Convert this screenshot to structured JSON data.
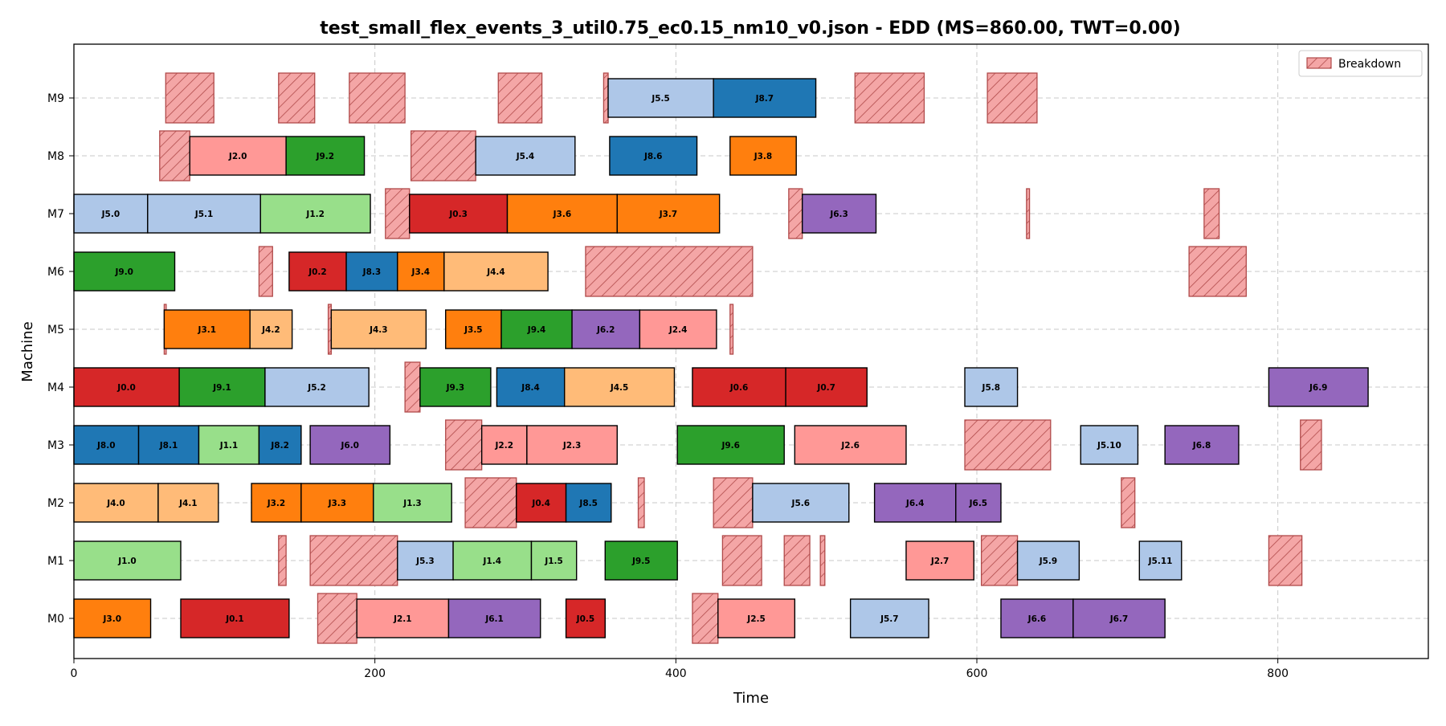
{
  "chart_data": {
    "type": "gantt",
    "title": "test_small_flex_events_3_util0.75_ec0.15_nm10_v0.json - EDD (MS=860.00, TWT=0.00)",
    "xlabel": "Time",
    "ylabel": "Machine",
    "xlim": [
      0,
      900
    ],
    "xticks": [
      0,
      200,
      400,
      600,
      800
    ],
    "machines": [
      "M0",
      "M1",
      "M2",
      "M3",
      "M4",
      "M5",
      "M6",
      "M7",
      "M8",
      "M9"
    ],
    "grid": true,
    "legend": {
      "position": "top-right",
      "entries": [
        "Breakdown"
      ]
    },
    "job_colors": {
      "J0": "#d62728",
      "J1": "#98df8a",
      "J2": "#ff9896",
      "J3": "#ff7f0e",
      "J4": "#ffbb78",
      "J5": "#aec7e8",
      "J6": "#9467bd",
      "J8": "#1f77b4",
      "J9": "#2ca02c"
    },
    "breakdown_color": "#f4a6a6",
    "operations": [
      {
        "machine": "M0",
        "label": "J3.0",
        "job": "J3",
        "start": 0,
        "end": 51
      },
      {
        "machine": "M0",
        "label": "J0.1",
        "job": "J0",
        "start": 71,
        "end": 143
      },
      {
        "machine": "M0",
        "label": "J2.1",
        "job": "J2",
        "start": 188,
        "end": 249
      },
      {
        "machine": "M0",
        "label": "J6.1",
        "job": "J6",
        "start": 249,
        "end": 310
      },
      {
        "machine": "M0",
        "label": "J0.5",
        "job": "J0",
        "start": 327,
        "end": 353
      },
      {
        "machine": "M0",
        "label": "J2.5",
        "job": "J2",
        "start": 428,
        "end": 479
      },
      {
        "machine": "M0",
        "label": "J5.7",
        "job": "J5",
        "start": 516,
        "end": 568
      },
      {
        "machine": "M0",
        "label": "J6.6",
        "job": "J6",
        "start": 616,
        "end": 664
      },
      {
        "machine": "M0",
        "label": "J6.7",
        "job": "J6",
        "start": 664,
        "end": 725
      },
      {
        "machine": "M1",
        "label": "J1.0",
        "job": "J1",
        "start": 0,
        "end": 71
      },
      {
        "machine": "M1",
        "label": "J5.3",
        "job": "J5",
        "start": 215,
        "end": 252
      },
      {
        "machine": "M1",
        "label": "J1.4",
        "job": "J1",
        "start": 252,
        "end": 304
      },
      {
        "machine": "M1",
        "label": "J1.5",
        "job": "J1",
        "start": 304,
        "end": 334
      },
      {
        "machine": "M1",
        "label": "J9.5",
        "job": "J9",
        "start": 353,
        "end": 401
      },
      {
        "machine": "M1",
        "label": "J2.7",
        "job": "J2",
        "start": 553,
        "end": 598
      },
      {
        "machine": "M1",
        "label": "J5.9",
        "job": "J5",
        "start": 627,
        "end": 668
      },
      {
        "machine": "M1",
        "label": "J5.11",
        "job": "J5",
        "start": 708,
        "end": 736
      },
      {
        "machine": "M2",
        "label": "J4.0",
        "job": "J4",
        "start": 0,
        "end": 56
      },
      {
        "machine": "M2",
        "label": "J4.1",
        "job": "J4",
        "start": 56,
        "end": 96
      },
      {
        "machine": "M2",
        "label": "J3.2",
        "job": "J3",
        "start": 118,
        "end": 151
      },
      {
        "machine": "M2",
        "label": "J3.3",
        "job": "J3",
        "start": 151,
        "end": 199
      },
      {
        "machine": "M2",
        "label": "J1.3",
        "job": "J1",
        "start": 199,
        "end": 251
      },
      {
        "machine": "M2",
        "label": "J0.4",
        "job": "J0",
        "start": 294,
        "end": 327
      },
      {
        "machine": "M2",
        "label": "J8.5",
        "job": "J8",
        "start": 327,
        "end": 357
      },
      {
        "machine": "M2",
        "label": "J5.6",
        "job": "J5",
        "start": 451,
        "end": 515
      },
      {
        "machine": "M2",
        "label": "J6.4",
        "job": "J6",
        "start": 532,
        "end": 586
      },
      {
        "machine": "M2",
        "label": "J6.5",
        "job": "J6",
        "start": 586,
        "end": 616
      },
      {
        "machine": "M3",
        "label": "J8.0",
        "job": "J8",
        "start": 0,
        "end": 43
      },
      {
        "machine": "M3",
        "label": "J8.1",
        "job": "J8",
        "start": 43,
        "end": 83
      },
      {
        "machine": "M3",
        "label": "J1.1",
        "job": "J1",
        "start": 83,
        "end": 123
      },
      {
        "machine": "M3",
        "label": "J8.2",
        "job": "J8",
        "start": 123,
        "end": 151
      },
      {
        "machine": "M3",
        "label": "J6.0",
        "job": "J6",
        "start": 157,
        "end": 210
      },
      {
        "machine": "M3",
        "label": "J2.2",
        "job": "J2",
        "start": 271,
        "end": 301
      },
      {
        "machine": "M3",
        "label": "J2.3",
        "job": "J2",
        "start": 301,
        "end": 361
      },
      {
        "machine": "M3",
        "label": "J9.6",
        "job": "J9",
        "start": 401,
        "end": 472
      },
      {
        "machine": "M3",
        "label": "J2.6",
        "job": "J2",
        "start": 479,
        "end": 553
      },
      {
        "machine": "M3",
        "label": "J5.10",
        "job": "J5",
        "start": 669,
        "end": 707
      },
      {
        "machine": "M3",
        "label": "J6.8",
        "job": "J6",
        "start": 725,
        "end": 774
      },
      {
        "machine": "M4",
        "label": "J0.0",
        "job": "J0",
        "start": 0,
        "end": 70
      },
      {
        "machine": "M4",
        "label": "J9.1",
        "job": "J9",
        "start": 70,
        "end": 127
      },
      {
        "machine": "M4",
        "label": "J5.2",
        "job": "J5",
        "start": 127,
        "end": 196
      },
      {
        "machine": "M4",
        "label": "J9.3",
        "job": "J9",
        "start": 230,
        "end": 277
      },
      {
        "machine": "M4",
        "label": "J8.4",
        "job": "J8",
        "start": 281,
        "end": 326
      },
      {
        "machine": "M4",
        "label": "J4.5",
        "job": "J4",
        "start": 326,
        "end": 399
      },
      {
        "machine": "M4",
        "label": "J0.6",
        "job": "J0",
        "start": 411,
        "end": 473
      },
      {
        "machine": "M4",
        "label": "J0.7",
        "job": "J0",
        "start": 473,
        "end": 527
      },
      {
        "machine": "M4",
        "label": "J5.8",
        "job": "J5",
        "start": 592,
        "end": 627
      },
      {
        "machine": "M4",
        "label": "J6.9",
        "job": "J6",
        "start": 794,
        "end": 860
      },
      {
        "machine": "M5",
        "label": "J3.1",
        "job": "J3",
        "start": 60,
        "end": 117
      },
      {
        "machine": "M5",
        "label": "J4.2",
        "job": "J4",
        "start": 117,
        "end": 145
      },
      {
        "machine": "M5",
        "label": "J4.3",
        "job": "J4",
        "start": 171,
        "end": 234
      },
      {
        "machine": "M5",
        "label": "J3.5",
        "job": "J3",
        "start": 247,
        "end": 284
      },
      {
        "machine": "M5",
        "label": "J9.4",
        "job": "J9",
        "start": 284,
        "end": 331
      },
      {
        "machine": "M5",
        "label": "J6.2",
        "job": "J6",
        "start": 331,
        "end": 376
      },
      {
        "machine": "M5",
        "label": "J2.4",
        "job": "J2",
        "start": 376,
        "end": 427
      },
      {
        "machine": "M6",
        "label": "J9.0",
        "job": "J9",
        "start": 0,
        "end": 67
      },
      {
        "machine": "M6",
        "label": "J0.2",
        "job": "J0",
        "start": 143,
        "end": 181
      },
      {
        "machine": "M6",
        "label": "J8.3",
        "job": "J8",
        "start": 181,
        "end": 215
      },
      {
        "machine": "M6",
        "label": "J3.4",
        "job": "J3",
        "start": 215,
        "end": 246
      },
      {
        "machine": "M6",
        "label": "J4.4",
        "job": "J4",
        "start": 246,
        "end": 315
      },
      {
        "machine": "M7",
        "label": "J5.0",
        "job": "J5",
        "start": 0,
        "end": 49
      },
      {
        "machine": "M7",
        "label": "J5.1",
        "job": "J5",
        "start": 49,
        "end": 124
      },
      {
        "machine": "M7",
        "label": "J1.2",
        "job": "J1",
        "start": 124,
        "end": 197
      },
      {
        "machine": "M7",
        "label": "J0.3",
        "job": "J0",
        "start": 223,
        "end": 288
      },
      {
        "machine": "M7",
        "label": "J3.6",
        "job": "J3",
        "start": 288,
        "end": 361
      },
      {
        "machine": "M7",
        "label": "J3.7",
        "job": "J3",
        "start": 361,
        "end": 429
      },
      {
        "machine": "M7",
        "label": "J6.3",
        "job": "J6",
        "start": 484,
        "end": 533
      },
      {
        "machine": "M8",
        "label": "J2.0",
        "job": "J2",
        "start": 77,
        "end": 141
      },
      {
        "machine": "M8",
        "label": "J9.2",
        "job": "J9",
        "start": 141,
        "end": 193
      },
      {
        "machine": "M8",
        "label": "J5.4",
        "job": "J5",
        "start": 267,
        "end": 333
      },
      {
        "machine": "M8",
        "label": "J8.6",
        "job": "J8",
        "start": 356,
        "end": 414
      },
      {
        "machine": "M8",
        "label": "J3.8",
        "job": "J3",
        "start": 436,
        "end": 480
      },
      {
        "machine": "M9",
        "label": "J5.5",
        "job": "J5",
        "start": 355,
        "end": 425
      },
      {
        "machine": "M9",
        "label": "J8.7",
        "job": "J8",
        "start": 425,
        "end": 493
      }
    ],
    "breakdowns": [
      {
        "machine": "M0",
        "start": 162,
        "end": 188
      },
      {
        "machine": "M0",
        "start": 411,
        "end": 428
      },
      {
        "machine": "M1",
        "start": 136,
        "end": 141
      },
      {
        "machine": "M1",
        "start": 157,
        "end": 215
      },
      {
        "machine": "M1",
        "start": 431,
        "end": 457
      },
      {
        "machine": "M1",
        "start": 472,
        "end": 489
      },
      {
        "machine": "M1",
        "start": 496,
        "end": 499
      },
      {
        "machine": "M1",
        "start": 603,
        "end": 627
      },
      {
        "machine": "M1",
        "start": 794,
        "end": 816
      },
      {
        "machine": "M2",
        "start": 260,
        "end": 294
      },
      {
        "machine": "M2",
        "start": 375,
        "end": 379
      },
      {
        "machine": "M2",
        "start": 425,
        "end": 451
      },
      {
        "machine": "M2",
        "start": 696,
        "end": 705
      },
      {
        "machine": "M3",
        "start": 247,
        "end": 271
      },
      {
        "machine": "M3",
        "start": 592,
        "end": 649
      },
      {
        "machine": "M3",
        "start": 815,
        "end": 829
      },
      {
        "machine": "M4",
        "start": 220,
        "end": 230
      },
      {
        "machine": "M5",
        "start": 60,
        "end": 61
      },
      {
        "machine": "M5",
        "start": 169,
        "end": 171
      },
      {
        "machine": "M5",
        "start": 436,
        "end": 438
      },
      {
        "machine": "M6",
        "start": 123,
        "end": 132
      },
      {
        "machine": "M6",
        "start": 340,
        "end": 451
      },
      {
        "machine": "M6",
        "start": 741,
        "end": 779
      },
      {
        "machine": "M7",
        "start": 207,
        "end": 223
      },
      {
        "machine": "M7",
        "start": 475,
        "end": 484
      },
      {
        "machine": "M7",
        "start": 633,
        "end": 635
      },
      {
        "machine": "M7",
        "start": 751,
        "end": 761
      },
      {
        "machine": "M8",
        "start": 57,
        "end": 77
      },
      {
        "machine": "M8",
        "start": 224,
        "end": 267
      },
      {
        "machine": "M9",
        "start": 61,
        "end": 93
      },
      {
        "machine": "M9",
        "start": 136,
        "end": 160
      },
      {
        "machine": "M9",
        "start": 183,
        "end": 220
      },
      {
        "machine": "M9",
        "start": 282,
        "end": 311
      },
      {
        "machine": "M9",
        "start": 352,
        "end": 355
      },
      {
        "machine": "M9",
        "start": 519,
        "end": 565
      },
      {
        "machine": "M9",
        "start": 607,
        "end": 640
      }
    ]
  }
}
